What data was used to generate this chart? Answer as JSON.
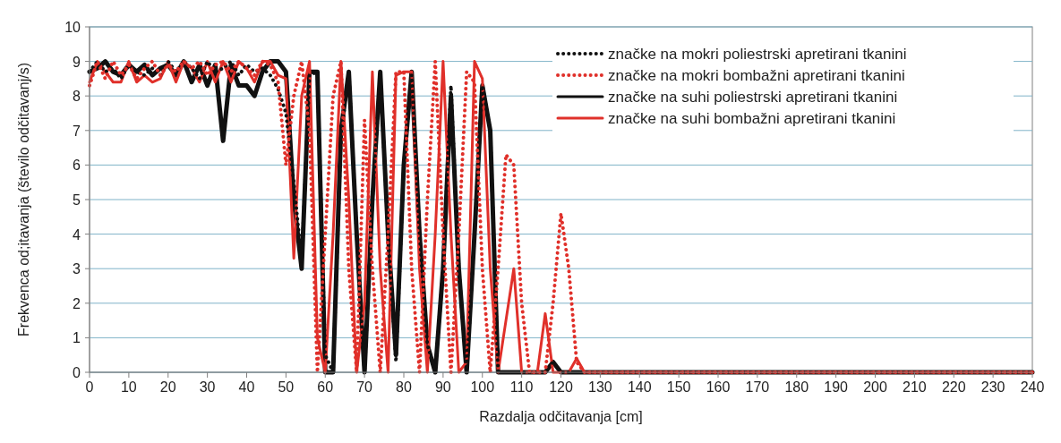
{
  "chart_data": {
    "type": "line",
    "xlabel": "Razdalja odčitavanja [cm]",
    "ylabel": "Frekvenca od;itavanja (število odčitavanj/s)",
    "x": [
      0,
      2,
      4,
      6,
      8,
      10,
      12,
      14,
      16,
      18,
      20,
      22,
      24,
      26,
      28,
      30,
      32,
      34,
      36,
      38,
      40,
      42,
      44,
      46,
      48,
      50,
      52,
      54,
      56,
      58,
      60,
      62,
      64,
      66,
      68,
      70,
      72,
      74,
      76,
      78,
      80,
      82,
      84,
      86,
      88,
      90,
      92,
      94,
      96,
      98,
      100,
      102,
      104,
      106,
      108,
      110,
      112,
      114,
      116,
      118,
      120,
      122,
      124,
      126,
      128,
      130,
      240
    ],
    "xlim": [
      0,
      240
    ],
    "xticks": [
      0,
      10,
      20,
      30,
      40,
      50,
      60,
      70,
      80,
      90,
      100,
      110,
      120,
      130,
      140,
      150,
      160,
      170,
      180,
      190,
      200,
      210,
      220,
      230,
      240
    ],
    "ylim": [
      0,
      10
    ],
    "yticks": [
      0,
      1,
      2,
      3,
      4,
      5,
      6,
      7,
      8,
      9,
      10
    ],
    "grid": "y",
    "legend": "top right",
    "series": [
      {
        "name": "značke na mokri poliestrski apretirani tkanini",
        "color": "#111111",
        "line_style": "dotted",
        "values": [
          8.7,
          9,
          8.7,
          8.8,
          8.5,
          8.9,
          8.7,
          8.6,
          8.8,
          8.6,
          9,
          8.7,
          9,
          8.8,
          8.5,
          9,
          8.7,
          8.8,
          9,
          8.6,
          8.9,
          8.7,
          8.8,
          8.6,
          8.2,
          7.5,
          5.5,
          3.2,
          8.6,
          8.7,
          0.5,
          0,
          6.8,
          8.7,
          4,
          0,
          5,
          8.6,
          4,
          0.3,
          6,
          8.6,
          4,
          0.8,
          0,
          3,
          8.3,
          3,
          0,
          4,
          8.3,
          7,
          0,
          0,
          0,
          0,
          0,
          0,
          0,
          0.3,
          0,
          0,
          0,
          0,
          0,
          0,
          0
        ]
      },
      {
        "name": "značke na mokri bombažni apretirani tkanini",
        "color": "#e0302a",
        "line_style": "dotted",
        "values": [
          8.3,
          9,
          8.5,
          9,
          8.6,
          8.9,
          8.5,
          8.8,
          9,
          8.6,
          8.9,
          8.7,
          9,
          8.8,
          9,
          8.6,
          8.9,
          9,
          8.7,
          9,
          8.8,
          8.6,
          9,
          8.9,
          8.4,
          6,
          8,
          9,
          7,
          0,
          4,
          8,
          9,
          3,
          0,
          7.3,
          3,
          0,
          4,
          8.7,
          8.7,
          3,
          0,
          5,
          9,
          4,
          0,
          4,
          8.7,
          8.4,
          3,
          0,
          3,
          6.3,
          6,
          2,
          0,
          0,
          0,
          2,
          4.6,
          3,
          0.3,
          0,
          0,
          0,
          0
        ]
      },
      {
        "name": "značke na suhi poliestrski apretirani tkanini",
        "color": "#111111",
        "line_style": "solid",
        "values": [
          8.7,
          8.8,
          9,
          8.7,
          8.6,
          8.9,
          8.7,
          8.9,
          8.6,
          8.8,
          8.9,
          8.6,
          9,
          8.4,
          8.9,
          8.3,
          8.9,
          6.7,
          8.9,
          8.3,
          8.3,
          8,
          8.7,
          9,
          9,
          8.7,
          5,
          3,
          8.7,
          8.7,
          0,
          0,
          7,
          8.7,
          4,
          0,
          5,
          8.7,
          4,
          0.5,
          6,
          8.7,
          4,
          0.8,
          0,
          3,
          8,
          3,
          0,
          4,
          8.3,
          7,
          0,
          0,
          0,
          0,
          0,
          0,
          0,
          0.3,
          0,
          0,
          0,
          0,
          0,
          0,
          0
        ]
      },
      {
        "name": "značke na suhi bombažni apretirani tkanini",
        "color": "#e0302a",
        "line_style": "solid",
        "values": [
          8.4,
          9,
          8.7,
          8.4,
          8.4,
          9,
          8.4,
          8.6,
          8.4,
          8.5,
          9,
          8.4,
          9,
          8.8,
          8.4,
          9,
          8.4,
          9,
          8.4,
          9,
          8.8,
          8.4,
          9,
          9,
          8.6,
          8.5,
          3.3,
          8,
          9,
          1,
          0,
          4,
          9,
          5,
          0,
          2,
          8.7,
          3,
          0,
          8.6,
          8.7,
          8.7,
          3,
          0,
          4,
          9,
          4,
          0,
          0.3,
          9,
          8.5,
          3,
          0,
          1.5,
          3,
          0,
          0,
          0,
          1.7,
          0,
          0,
          0,
          0.4,
          0,
          0,
          0,
          0
        ]
      }
    ]
  }
}
